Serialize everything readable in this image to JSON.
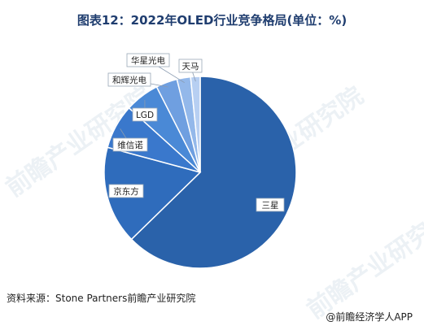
{
  "title": "图表12：2022年OLED行业竞争格局(单位：%)",
  "source": "资料来源：Stone Partners前瞻产业研究院",
  "brand": "@前瞻经济学人APP",
  "watermark": "前瞻产业研究院",
  "colors": {
    "title": "#1f3d6f",
    "slice_fill_dark": "#2a62aa",
    "slice_fill_mid": "#3a78cc",
    "slice_fill_light": "#6f9fe0",
    "slice_stroke": "#ffffff"
  },
  "chart_data": {
    "type": "pie",
    "title": "图表12：2022年OLED行业竞争格局(单位：%)",
    "start": "top, clockwise",
    "slices": [
      {
        "label": "三星",
        "value": 62.7,
        "color": "#2a62aa"
      },
      {
        "label": "京东方",
        "value": 16.5,
        "color": "#2f6cbc"
      },
      {
        "label": "维信诺",
        "value": 7.5,
        "color": "#3a78cc"
      },
      {
        "label": "LGD",
        "value": 5.8,
        "color": "#4a89d6"
      },
      {
        "label": "和辉光电",
        "value": 3.6,
        "color": "#6f9fe0"
      },
      {
        "label": "华星光电",
        "value": 2.3,
        "color": "#93b8ea"
      },
      {
        "label": "天马",
        "value": 1.6,
        "color": "#b7cff2"
      }
    ]
  }
}
